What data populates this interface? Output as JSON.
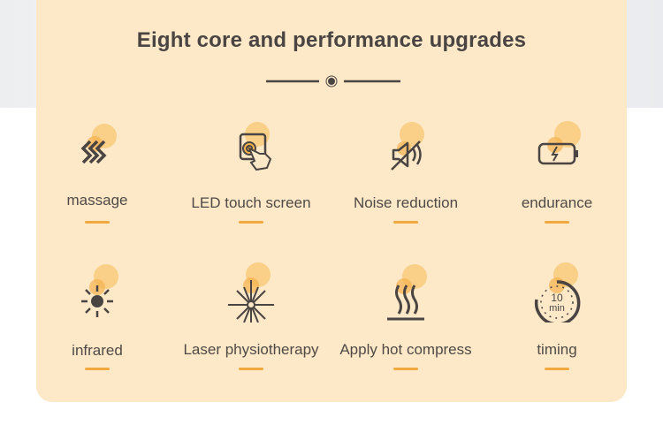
{
  "title": "Eight core and performance upgrades",
  "colors": {
    "card": "#fde8c7",
    "accent": "#f2a93f",
    "icon": "#4a4543",
    "circle": "#f8c56e"
  },
  "features": [
    {
      "label": "massage",
      "icon": "massage-waves-icon"
    },
    {
      "label": "LED touch screen",
      "icon": "touch-screen-icon"
    },
    {
      "label": "Noise reduction",
      "icon": "mute-speaker-icon"
    },
    {
      "label": "endurance",
      "icon": "battery-icon"
    },
    {
      "label": "infrared",
      "icon": "sun-icon"
    },
    {
      "label": "Laser physiotherapy",
      "icon": "laser-burst-icon"
    },
    {
      "label": "Apply hot compress",
      "icon": "heat-waves-icon"
    },
    {
      "label": "timing",
      "icon": "timer-icon",
      "icon_text": "10",
      "icon_text2": "min"
    }
  ]
}
